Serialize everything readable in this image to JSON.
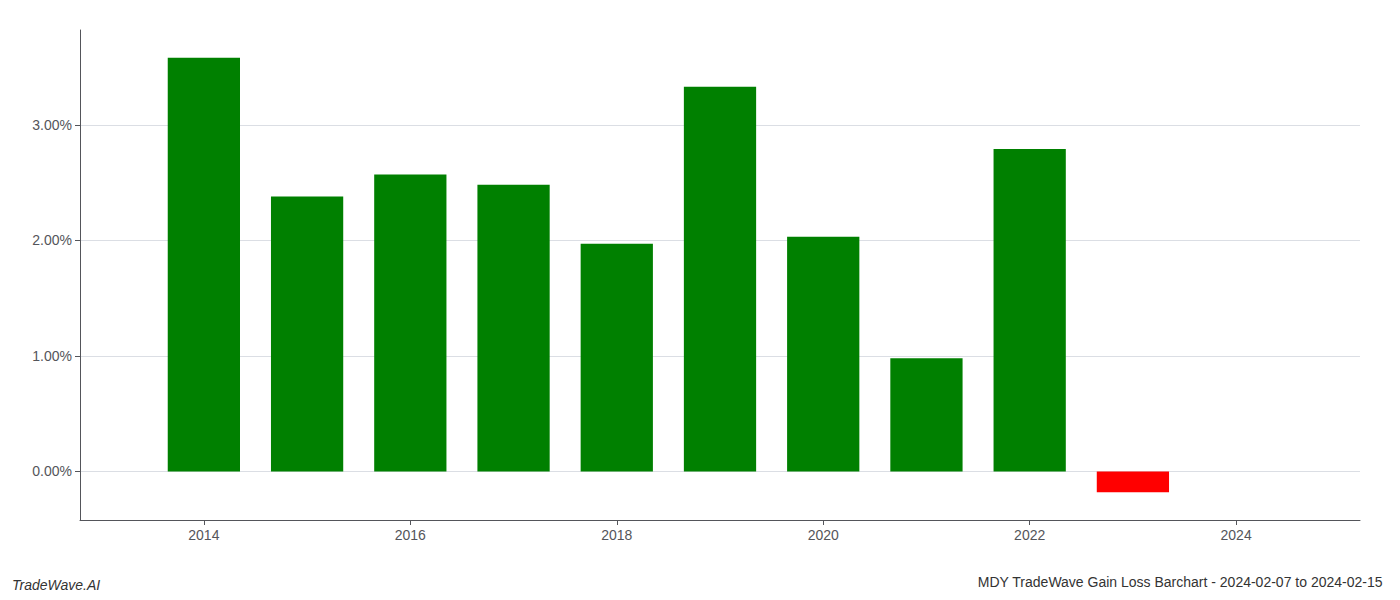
{
  "chart_data": {
    "type": "bar",
    "title": "MDY TradeWave Gain Loss Barchart - 2024-02-07 to 2024-02-15",
    "annotations": [
      "TradeWave.AI"
    ],
    "x": [
      2014,
      2015,
      2016,
      2017,
      2018,
      2019,
      2020,
      2021,
      2022,
      2023
    ],
    "values": [
      3.58,
      2.38,
      2.57,
      2.48,
      1.97,
      3.33,
      2.03,
      0.98,
      2.79,
      -0.18
    ],
    "colors": [
      "#008000",
      "#008000",
      "#008000",
      "#008000",
      "#008000",
      "#008000",
      "#008000",
      "#008000",
      "#008000",
      "#ff0000"
    ],
    "xlim": [
      2012.8,
      2025.2
    ],
    "xticks": [
      2014,
      2016,
      2018,
      2020,
      2022,
      2024
    ],
    "ylim": [
      -0.42,
      3.82
    ],
    "yticks": [
      {
        "value": 0.0,
        "label": "0.00%"
      },
      {
        "value": 1.0,
        "label": "1.00%"
      },
      {
        "value": 2.0,
        "label": "2.00%"
      },
      {
        "value": 3.0,
        "label": "3.00%"
      }
    ],
    "grid": true
  }
}
